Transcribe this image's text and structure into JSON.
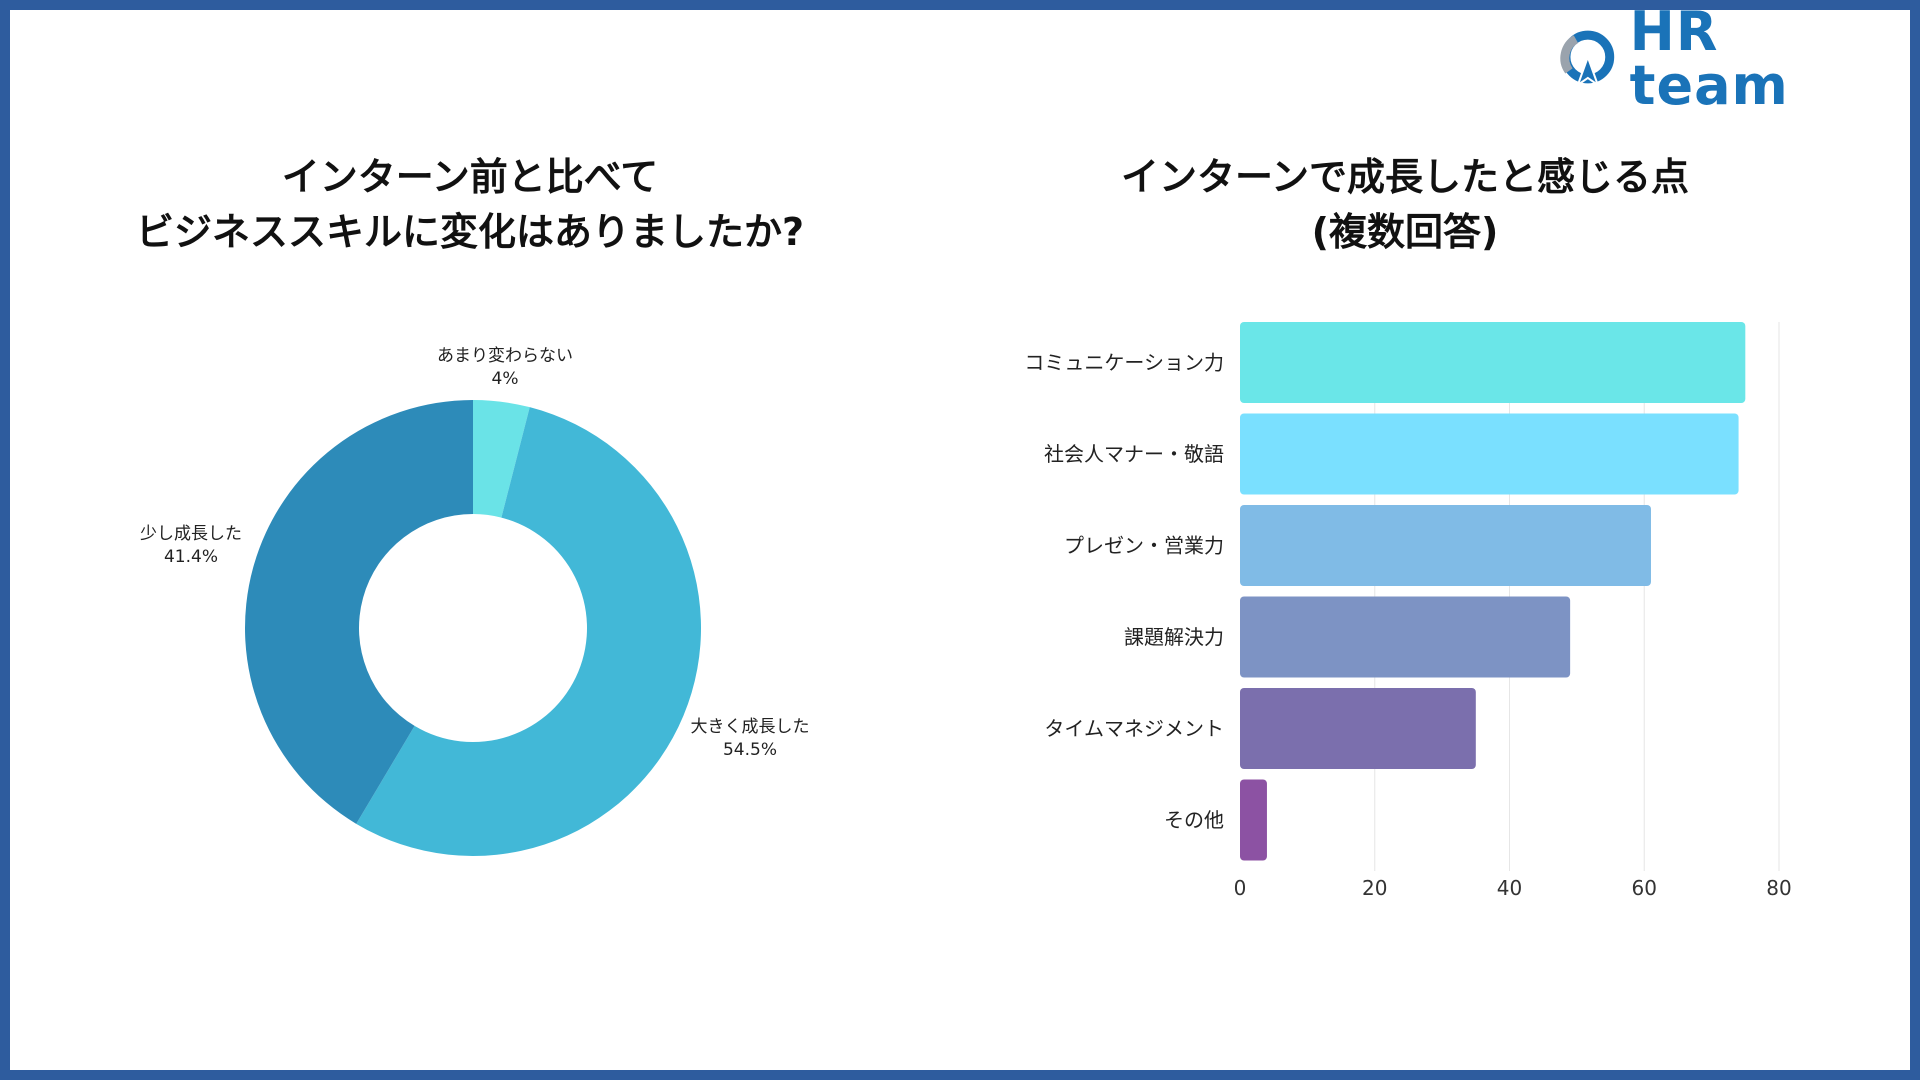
{
  "brand": {
    "name": "HR team",
    "accent": "#1a73b8",
    "frame_color": "#2e5c9e"
  },
  "chart_data": [
    {
      "type": "pie",
      "title_lines": [
        "インターン前と比べて",
        "ビジネススキルに変化はありましたか?"
      ],
      "donut": true,
      "slices": [
        {
          "label": "あまり変わらない",
          "value": 4,
          "display": "4%",
          "color": "#6ae3e7"
        },
        {
          "label": "大きく成長した",
          "value": 54.5,
          "display": "54.5%",
          "color": "#42b8d7"
        },
        {
          "label": "少し成長した",
          "value": 41.4,
          "display": "41.4%",
          "color": "#2d8bb9"
        }
      ]
    },
    {
      "type": "bar",
      "orientation": "horizontal",
      "title_lines": [
        "インターンで成長したと感じる点",
        "(複数回答)"
      ],
      "categories": [
        "コミュニケーション力",
        "社会人マナー・敬語",
        "プレゼン・営業力",
        "課題解決力",
        "タイムマネジメント",
        "その他"
      ],
      "values": [
        75,
        74,
        61,
        49,
        35,
        4
      ],
      "colors": [
        "#6ae6e8",
        "#7ae0ff",
        "#80bbe6",
        "#7d93c4",
        "#7b6fad",
        "#8c52a3"
      ],
      "xlim": [
        0,
        80
      ],
      "xticks": [
        0,
        20,
        40,
        60,
        80
      ],
      "grid": true
    }
  ]
}
